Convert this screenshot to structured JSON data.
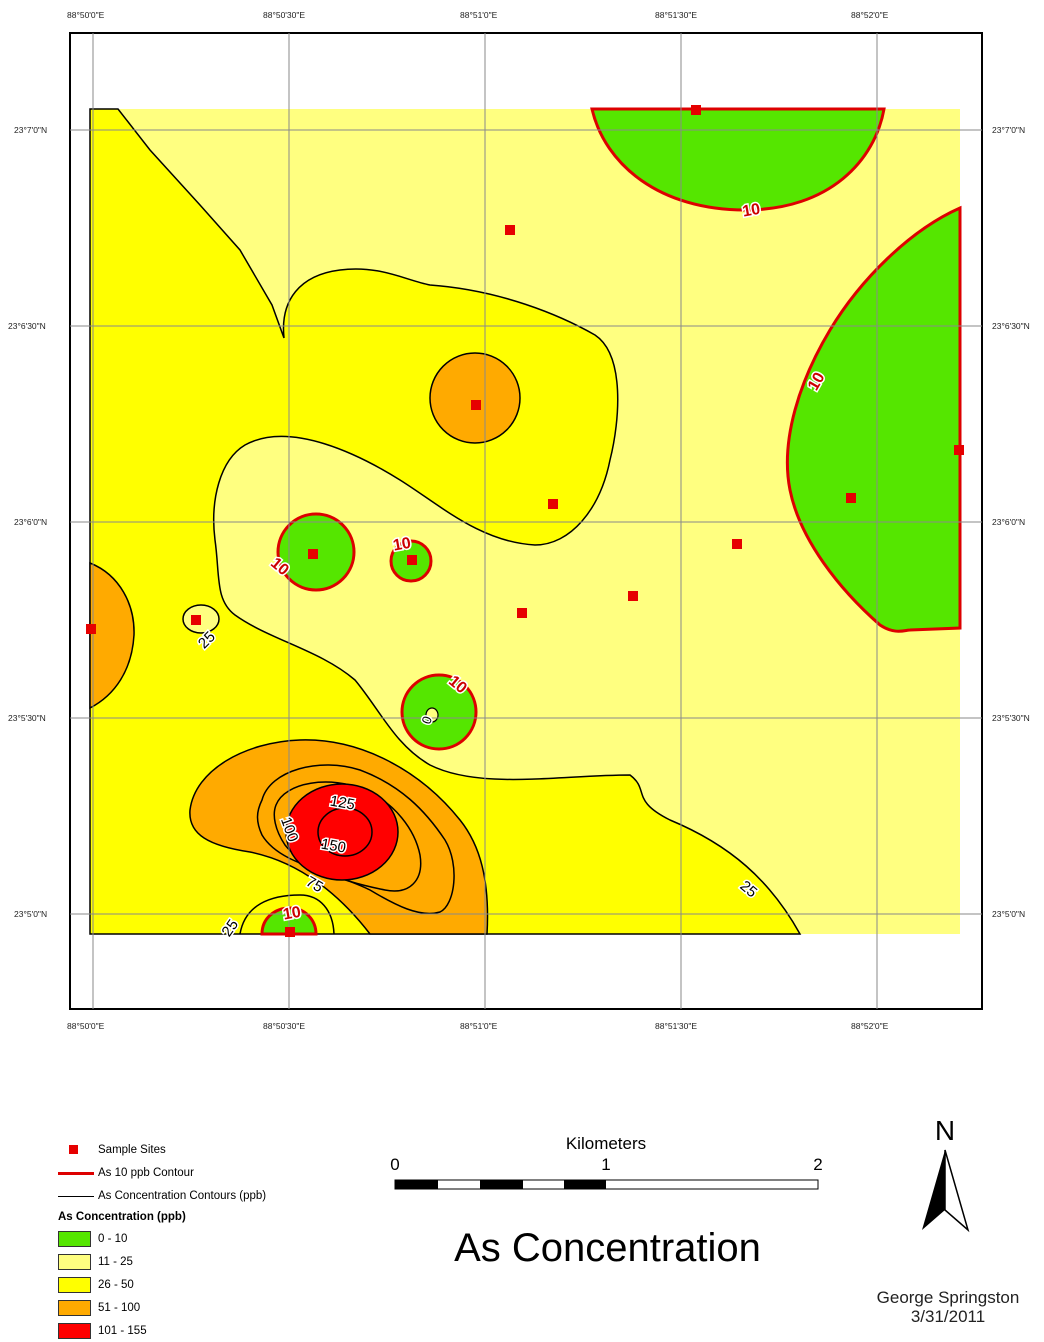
{
  "map": {
    "title": "As Concentration",
    "author": "George Springston",
    "date": "3/31/2011",
    "north_label": "N",
    "lon_labels": [
      "88°50'0\"E",
      "88°50'30\"E",
      "88°51'0\"E",
      "88°51'30\"E",
      "88°52'0\"E"
    ],
    "lat_labels": [
      "23°7'0\"N",
      "23°6'30\"N",
      "23°6'0\"N",
      "23°5'30\"N",
      "23°5'0\"N"
    ],
    "contour_labels": [
      "10",
      "25",
      "75",
      "100",
      "125",
      "150",
      "0"
    ],
    "colors": {
      "class_0_10": "#55e600",
      "class_11_25": "#ffff80",
      "class_26_50": "#ffff00",
      "class_51_100": "#ffaa00",
      "class_101_155": "#ff0000",
      "contour_10": "#e00000",
      "sample_site": "#e60000"
    }
  },
  "scalebar": {
    "unit": "Kilometers",
    "ticks": [
      "0",
      "1",
      "2"
    ]
  },
  "legend": {
    "sample_sites": "Sample Sites",
    "contour_10": "As 10 ppb Contour",
    "contours": "As Concentration Contours (ppb)",
    "classes_title": "As Concentration (ppb)",
    "classes": [
      {
        "label": "0 - 10",
        "color": "#55e600"
      },
      {
        "label": "11 - 25",
        "color": "#ffff80"
      },
      {
        "label": "26 - 50",
        "color": "#ffff00"
      },
      {
        "label": "51 - 100",
        "color": "#ffaa00"
      },
      {
        "label": "101 - 155",
        "color": "#ff0000"
      }
    ]
  }
}
